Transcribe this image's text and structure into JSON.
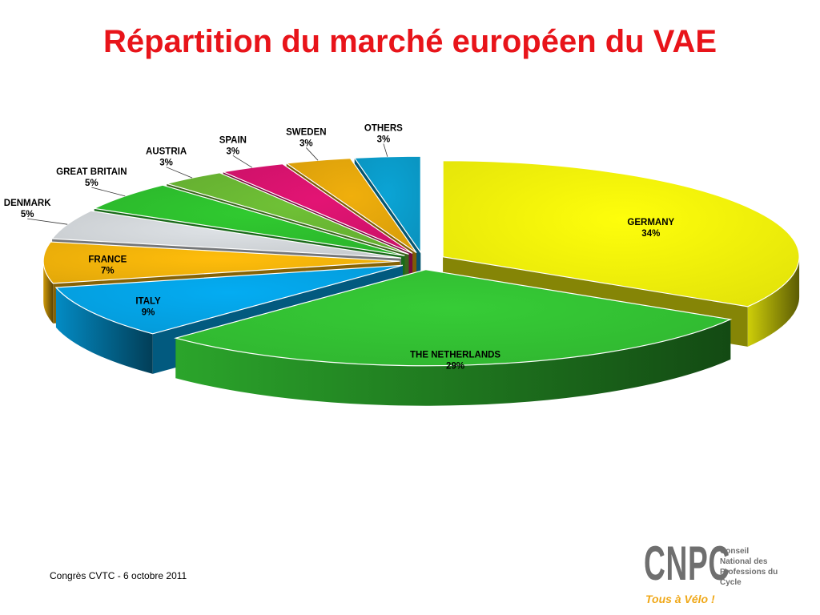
{
  "title": "Répartition du marché européen du VAE",
  "colors": {
    "title": "#e8141a"
  },
  "footer": {
    "text": "Congrès CVTC - 6 octobre 2011"
  },
  "logo": {
    "name": "CNPC",
    "lines": [
      "Conseil",
      "National des",
      "Professions du",
      "Cycle"
    ],
    "slogan": "Tous à Vélo !"
  },
  "chart_data": {
    "type": "pie",
    "title": "Répartition du marché européen du VAE",
    "style": "3d-exploded",
    "unit": "%",
    "slices": [
      {
        "name": "GERMANY",
        "value": 34,
        "label": "34%",
        "color": "#f2f20a"
      },
      {
        "name": "THE NETHERLANDS",
        "value": 29,
        "label": "29%",
        "color": "#33c233"
      },
      {
        "name": "ITALY",
        "value": 9,
        "label": "9%",
        "color": "#04a4e6"
      },
      {
        "name": "FRANCE",
        "value": 7,
        "label": "7%",
        "color": "#f3b40a"
      },
      {
        "name": "DENMARK",
        "value": 5,
        "label": "5%",
        "color": "#d3d7db"
      },
      {
        "name": "GREAT BRITAIN",
        "value": 5,
        "label": "5%",
        "color": "#2ec02e"
      },
      {
        "name": "AUSTRIA",
        "value": 3,
        "label": "3%",
        "color": "#6ab833"
      },
      {
        "name": "SPAIN",
        "value": 3,
        "label": "3%",
        "color": "#d8136e"
      },
      {
        "name": "SWEDEN",
        "value": 3,
        "label": "3%",
        "color": "#e5a70b"
      },
      {
        "name": "OTHERS",
        "value": 3,
        "label": "3%",
        "color": "#0a9ccb"
      }
    ]
  }
}
